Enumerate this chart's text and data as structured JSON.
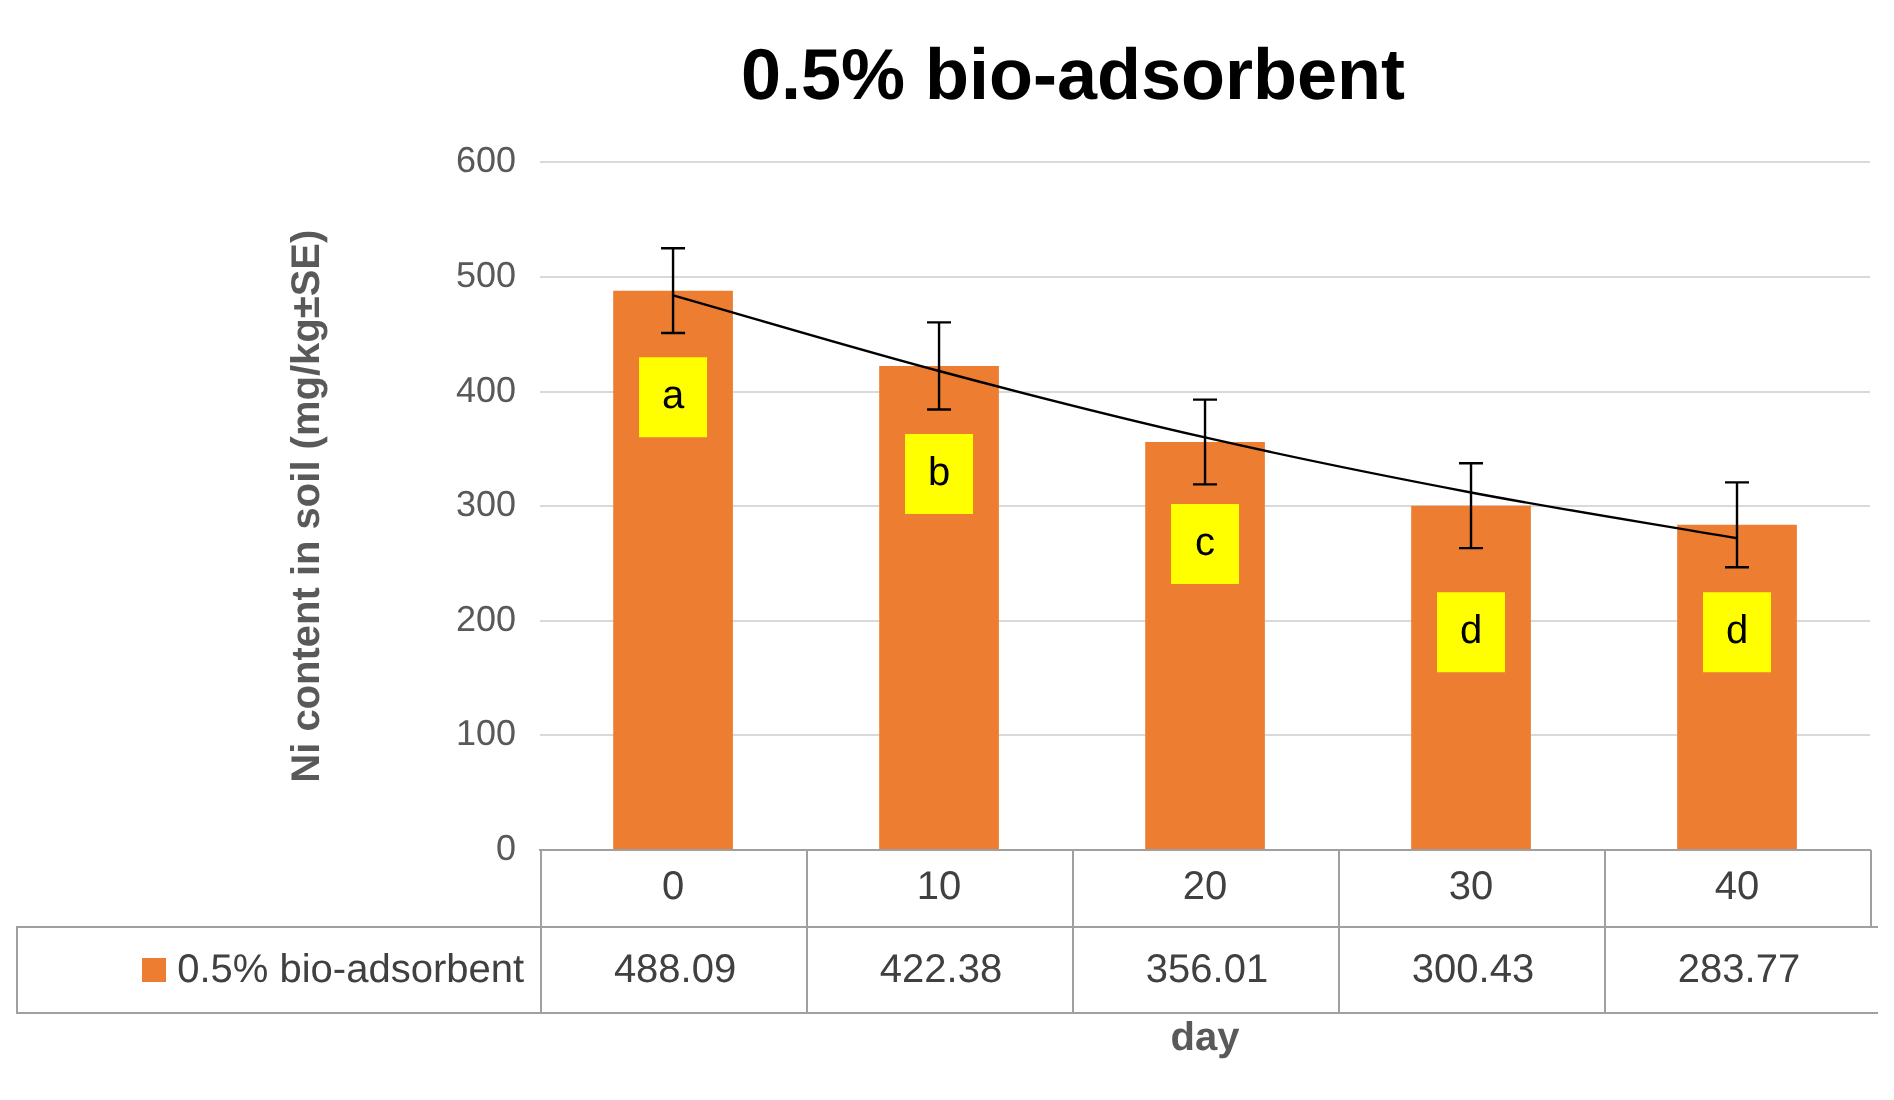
{
  "chart_data": {
    "type": "bar",
    "title": "0.5% bio-adsorbent",
    "xlabel": "day",
    "ylabel": "Ni content in soil (mg/kg±SE)",
    "categories": [
      "0",
      "10",
      "20",
      "30",
      "40"
    ],
    "series": [
      {
        "name": "0.5% bio-adsorbent",
        "color": "#ed7d31",
        "values": [
          488.09,
          422.38,
          356.01,
          300.43,
          283.77
        ],
        "value_labels": [
          "488.09",
          "422.38",
          "356.01",
          "300.43",
          "283.77"
        ],
        "errors": [
          37,
          38,
          37,
          37,
          37
        ]
      },
      {
        "type": "line",
        "color": "#000000",
        "values": [
          484,
          418,
          360,
          312,
          272
        ]
      }
    ],
    "ylim": [
      0,
      600
    ],
    "yticks": [
      0,
      100,
      200,
      300,
      400,
      500,
      600
    ],
    "grid": "y",
    "legend": "bottom",
    "annotations": [
      {
        "text": "a",
        "x": "0",
        "y": 395
      },
      {
        "text": "b",
        "x": "10",
        "y": 328
      },
      {
        "text": "c",
        "x": "20",
        "y": 267
      },
      {
        "text": "d",
        "x": "30",
        "y": 190
      },
      {
        "text": "d",
        "x": "40",
        "y": 190
      }
    ]
  }
}
